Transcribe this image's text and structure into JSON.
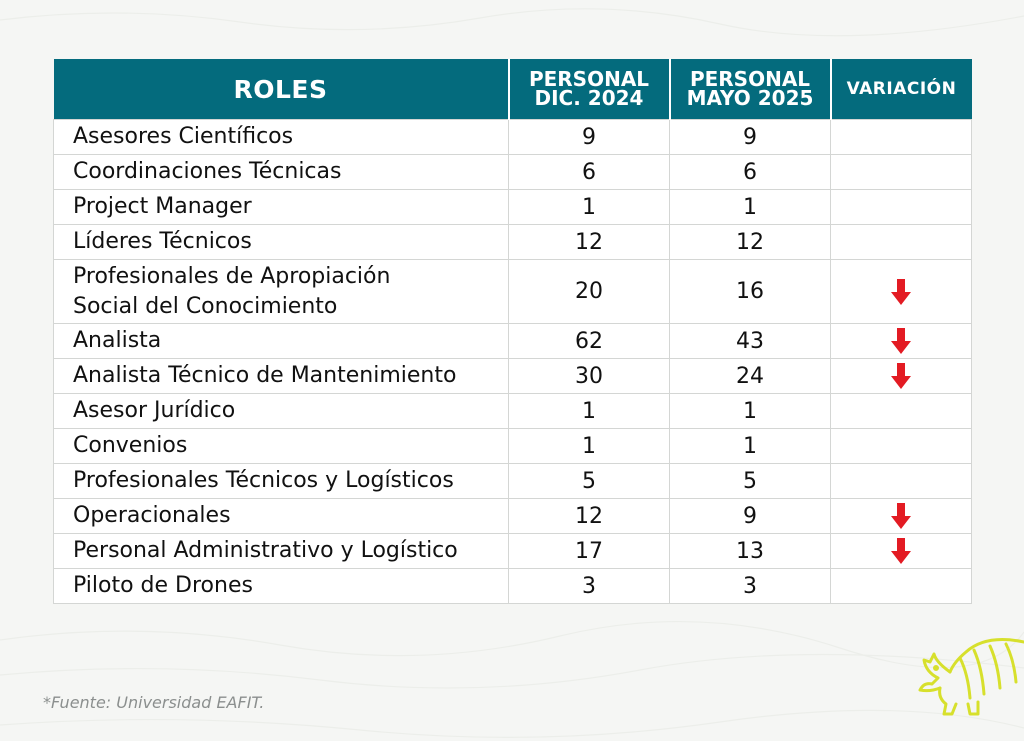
{
  "table": {
    "headers": {
      "roles": "ROLES",
      "dic_line1": "PERSONAL",
      "dic_line2": "DIC. 2024",
      "mayo_line1": "PERSONAL",
      "mayo_line2": "MAYO 2025",
      "variacion": "VARIACIÓN"
    },
    "rows": [
      {
        "role": "Asesores Científicos",
        "dic": "9",
        "mayo": "9",
        "down": false
      },
      {
        "role_line1": "Coordinaciones Técnicas",
        "dic": "6",
        "mayo": "6",
        "down": false
      },
      {
        "role": "Project Manager",
        "dic": "1",
        "mayo": "1",
        "down": false
      },
      {
        "role": "Líderes Técnicos",
        "dic": "12",
        "mayo": "12",
        "down": false
      },
      {
        "role_line1": "Profesionales de Apropiación",
        "role_line2": "Social del Conocimiento",
        "dic": "20",
        "mayo": "16",
        "down": true
      },
      {
        "role": "Analista",
        "dic": "62",
        "mayo": "43",
        "down": true
      },
      {
        "role": "Analista Técnico de Mantenimiento",
        "dic": "30",
        "mayo": "24",
        "down": true
      },
      {
        "role": "Asesor Jurídico",
        "dic": "1",
        "mayo": "1",
        "down": false
      },
      {
        "role": "Convenios",
        "dic": "1",
        "mayo": "1",
        "down": false
      },
      {
        "role": "Profesionales Técnicos y Logísticos",
        "dic": "5",
        "mayo": "5",
        "down": false
      },
      {
        "role": "Operacionales",
        "dic": "12",
        "mayo": "9",
        "down": true
      },
      {
        "role": "Personal Administrativo y Logístico",
        "dic": "17",
        "mayo": "13",
        "down": true
      },
      {
        "role": "Piloto de Drones",
        "dic": "3",
        "mayo": "3",
        "down": false
      }
    ]
  },
  "source": "*Fuente: Universidad EAFIT.",
  "colors": {
    "header_bg": "#046b7d",
    "arrow_red": "#e31b23",
    "logo_yellow": "#d7e02c"
  },
  "icons": {
    "variation_down": "arrow-down-icon",
    "logo": "armadillo-icon"
  }
}
